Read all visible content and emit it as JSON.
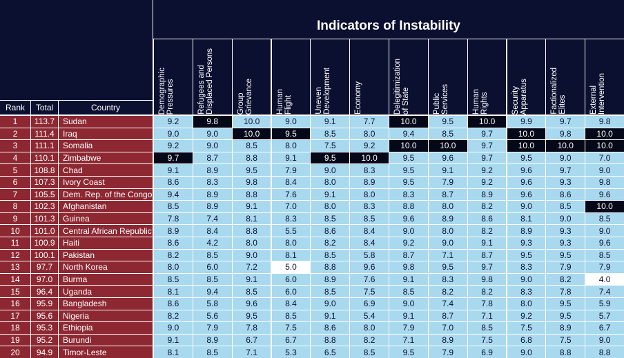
{
  "table": {
    "title": "Indicators of Instability",
    "left_headers": [
      "Rank",
      "Total",
      "Country"
    ],
    "indicators": [
      "Demographic\nPressures",
      "Refugees and\nDisplaced Persons",
      "Group\nGrievance",
      "Human\nFlight",
      "Uneven\nDevelopment",
      "Economy",
      "Delegitimization\nof State",
      "Public\nServices",
      "Human\nRights",
      "Security\nApparatus",
      "Factionalized\nElites",
      "External\nIntervention"
    ],
    "rows": [
      [
        "1",
        "113.7",
        "Sudan",
        "9.2",
        "9.8",
        "10.0",
        "9.0",
        "9.1",
        "7.7",
        "10.0",
        "9.5",
        "10.0",
        "9.9",
        "9.7",
        "9.8"
      ],
      [
        "2",
        "111.4",
        "Iraq",
        "9.0",
        "9.0",
        "10.0",
        "9.5",
        "8.5",
        "8.0",
        "9.4",
        "8.5",
        "9.7",
        "10.0",
        "9.8",
        "10.0"
      ],
      [
        "3",
        "111.1",
        "Somalia",
        "9.2",
        "9.0",
        "8.5",
        "8.0",
        "7.5",
        "9.2",
        "10.0",
        "10.0",
        "9.7",
        "10.0",
        "10.0",
        "10.0"
      ],
      [
        "4",
        "110.1",
        "Zimbabwe",
        "9.7",
        "8.7",
        "8.8",
        "9.1",
        "9.5",
        "10.0",
        "9.5",
        "9.6",
        "9.7",
        "9.5",
        "9.0",
        "7.0"
      ],
      [
        "5",
        "108.8",
        "Chad",
        "9.1",
        "8.9",
        "9.5",
        "7.9",
        "9.0",
        "8.3",
        "9.5",
        "9.1",
        "9.2",
        "9.6",
        "9.7",
        "9.0"
      ],
      [
        "6",
        "107.3",
        "Ivory Coast",
        "8.6",
        "8.3",
        "9.8",
        "8.4",
        "8.0",
        "8.9",
        "9.5",
        "7.9",
        "9.2",
        "9.6",
        "9.3",
        "9.8"
      ],
      [
        "7",
        "105.5",
        "Dem. Rep. of the Congo",
        "9.4",
        "8.9",
        "8.8",
        "7.6",
        "9.1",
        "8.0",
        "8.3",
        "8.7",
        "8.9",
        "9.6",
        "8.6",
        "9.6"
      ],
      [
        "8",
        "102.3",
        "Afghanistan",
        "8.5",
        "8.9",
        "9.1",
        "7.0",
        "8.0",
        "8.3",
        "8.8",
        "8.0",
        "8.2",
        "9.0",
        "8.5",
        "10.0"
      ],
      [
        "9",
        "101.3",
        "Guinea",
        "7.8",
        "7.4",
        "8.1",
        "8.3",
        "8.5",
        "8.5",
        "9.6",
        "8.9",
        "8.6",
        "8.1",
        "9.0",
        "8.5"
      ],
      [
        "10",
        "101.0",
        "Central African Republic",
        "8.9",
        "8.4",
        "8.8",
        "5.5",
        "8.6",
        "8.4",
        "9.0",
        "8.0",
        "8.2",
        "8.9",
        "9.3",
        "9.0"
      ],
      [
        "11",
        "100.9",
        "Haiti",
        "8.6",
        "4.2",
        "8.0",
        "8.0",
        "8.2",
        "8.4",
        "9.2",
        "9.0",
        "9.1",
        "9.3",
        "9.3",
        "9.6"
      ],
      [
        "12",
        "100.1",
        "Pakistan",
        "8.2",
        "8.5",
        "9.0",
        "8.1",
        "8.5",
        "5.8",
        "8.7",
        "7.1",
        "8.7",
        "9.5",
        "9.5",
        "8.5"
      ],
      [
        "13",
        "97.7",
        "North Korea",
        "8.0",
        "6.0",
        "7.2",
        "5.0",
        "8.8",
        "9.6",
        "9.8",
        "9.5",
        "9.7",
        "8.3",
        "7.9",
        "7.9"
      ],
      [
        "14",
        "97.0",
        "Burma",
        "8.5",
        "8.5",
        "9.1",
        "6.0",
        "8.9",
        "7.6",
        "9.1",
        "8.3",
        "9.8",
        "9.0",
        "8.2",
        "4.0"
      ],
      [
        "15",
        "96.4",
        "Uganda",
        "8.1",
        "9.4",
        "8.5",
        "6.0",
        "8.5",
        "7.5",
        "8.5",
        "8.2",
        "8.2",
        "8.3",
        "7.8",
        "7.4"
      ],
      [
        "16",
        "95.9",
        "Bangladesh",
        "8.6",
        "5.8",
        "9.6",
        "8.4",
        "9.0",
        "6.9",
        "9.0",
        "7.4",
        "7.8",
        "8.0",
        "9.5",
        "5.9"
      ],
      [
        "17",
        "95.6",
        "Nigeria",
        "8.2",
        "5.6",
        "9.5",
        "8.5",
        "9.1",
        "5.4",
        "9.1",
        "8.7",
        "7.1",
        "9.2",
        "9.5",
        "5.7"
      ],
      [
        "18",
        "95.3",
        "Ethiopia",
        "9.0",
        "7.9",
        "7.8",
        "7.5",
        "8.6",
        "8.0",
        "7.9",
        "7.0",
        "8.5",
        "7.5",
        "8.9",
        "6.7"
      ],
      [
        "19",
        "95.2",
        "Burundi",
        "9.1",
        "8.9",
        "6.7",
        "6.7",
        "8.8",
        "8.2",
        "7.1",
        "8.9",
        "7.5",
        "6.8",
        "7.5",
        "9.0"
      ],
      [
        "20",
        "94.9",
        "Timor-Leste",
        "8.1",
        "8.5",
        "7.1",
        "5.3",
        "6.5",
        "8.5",
        "9.5",
        "7.9",
        "6.9",
        "9.0",
        "8.8",
        "8.8"
      ]
    ]
  }
}
